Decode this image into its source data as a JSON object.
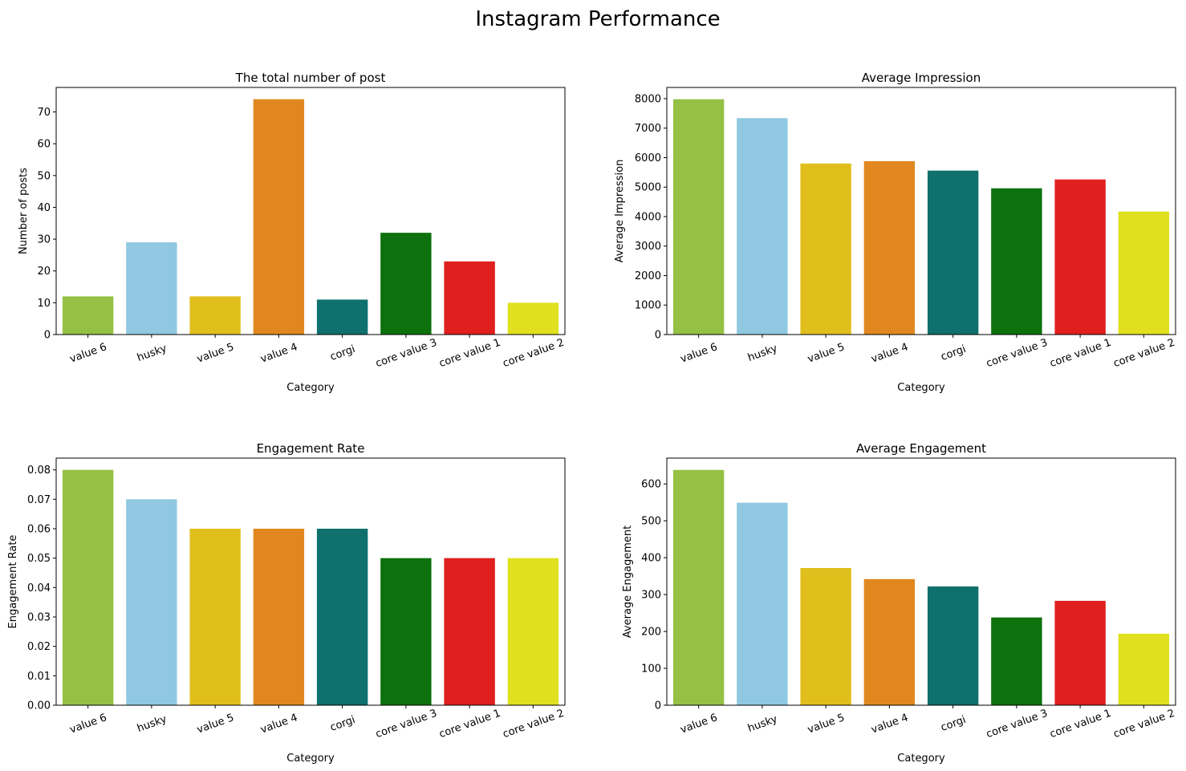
{
  "figure": {
    "title": "Instagram Performance"
  },
  "colors": [
    "#94c143",
    "#8fc8e0",
    "#e0bf1d",
    "#e0881f",
    "#0f706e",
    "#0d710d",
    "#e01f1f",
    "#e0e01f"
  ],
  "chart_data": [
    {
      "type": "bar",
      "title": "The total number of post",
      "xlabel": "Category",
      "ylabel": "Number of posts",
      "categories": [
        "value 6",
        "husky",
        "value 5",
        "value 4",
        "corgi",
        "core value 3",
        "core value 1",
        "core value 2"
      ],
      "values": [
        12,
        29,
        12,
        74,
        11,
        32,
        23,
        10
      ],
      "ylim": [
        0,
        77.7
      ],
      "yticks": [
        0,
        10,
        20,
        30,
        40,
        50,
        60,
        70
      ],
      "grid": false
    },
    {
      "type": "bar",
      "title": "Average Impression",
      "xlabel": "Category",
      "ylabel": "Average Impression",
      "categories": [
        "value 6",
        "husky",
        "value 5",
        "value 4",
        "corgi",
        "core value 3",
        "core value 1",
        "core value 2"
      ],
      "values": [
        7980,
        7340,
        5800,
        5880,
        5560,
        4960,
        5260,
        4170
      ],
      "ylim": [
        0,
        8380
      ],
      "yticks": [
        0,
        1000,
        2000,
        3000,
        4000,
        5000,
        6000,
        7000,
        8000
      ],
      "grid": false
    },
    {
      "type": "bar",
      "title": "Engagement Rate",
      "xlabel": "Category",
      "ylabel": "Engagement Rate",
      "categories": [
        "value 6",
        "husky",
        "value 5",
        "value 4",
        "corgi",
        "core value 3",
        "core value 1",
        "core value 2"
      ],
      "values": [
        0.08,
        0.07,
        0.06,
        0.06,
        0.06,
        0.05,
        0.05,
        0.05
      ],
      "ylim": [
        0,
        0.084
      ],
      "yticks": [
        "0.00",
        "0.01",
        "0.02",
        "0.03",
        "0.04",
        "0.05",
        "0.06",
        "0.07",
        "0.08"
      ],
      "grid": false
    },
    {
      "type": "bar",
      "title": "Average Engagement",
      "xlabel": "Category",
      "ylabel": "Average Engagement",
      "categories": [
        "value 6",
        "husky",
        "value 5",
        "value 4",
        "corgi",
        "core value 3",
        "core value 1",
        "core value 2"
      ],
      "values": [
        638,
        549,
        372,
        342,
        322,
        238,
        283,
        194
      ],
      "ylim": [
        0,
        670
      ],
      "yticks": [
        0,
        100,
        200,
        300,
        400,
        500,
        600
      ],
      "grid": false
    }
  ]
}
